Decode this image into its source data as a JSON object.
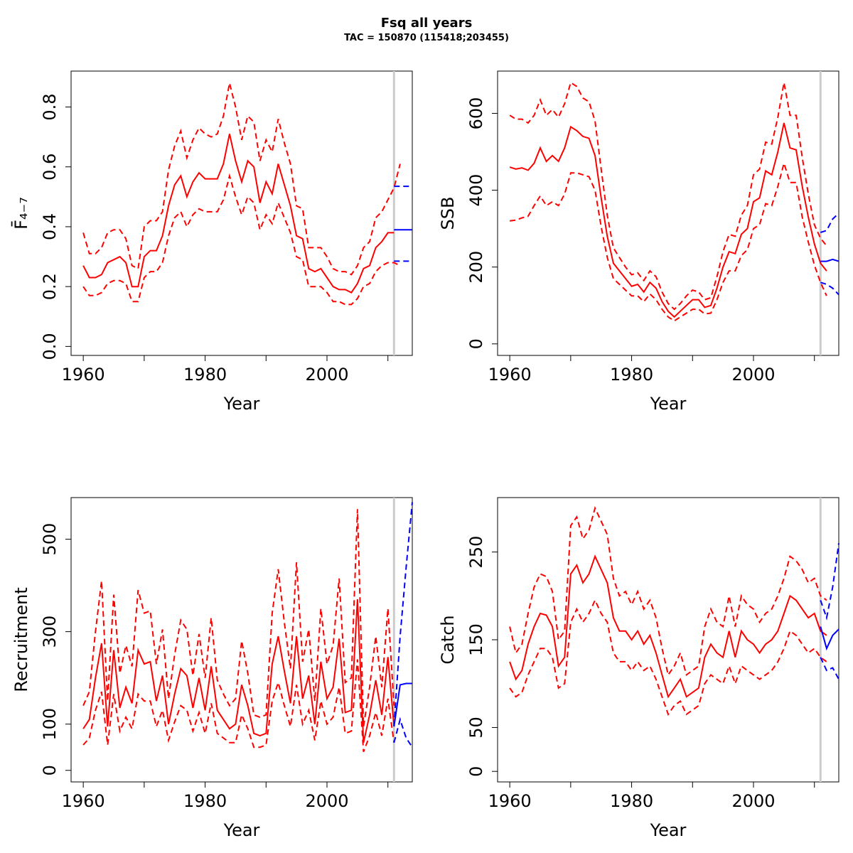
{
  "figure": {
    "title": "Fsq all years",
    "subtitle": "TAC = 150870 (115418;203455)"
  },
  "colors": {
    "history": "#ff0000",
    "forecast": "#0000ff",
    "divider": "#cccccc"
  },
  "chart_data": [
    {
      "type": "line",
      "panel": "top-left",
      "xlabel": "Year",
      "ylabel": "F̄₄₋₇",
      "xlim": [
        1958,
        2014
      ],
      "ylim": [
        -0.03,
        0.92
      ],
      "x_ticks": [
        1960,
        1980,
        2000
      ],
      "x_tick_labels": [
        "1960",
        "1980",
        "2000"
      ],
      "y_ticks": [
        0.0,
        0.2,
        0.4,
        0.6,
        0.8
      ],
      "y_tick_labels": [
        "0.0",
        "0.2",
        "0.4",
        "0.6",
        "0.8"
      ],
      "divider_x": 2011,
      "series": [
        {
          "role": "estimate",
          "color": "red",
          "dash": false,
          "x_start": 1960,
          "values": [
            0.27,
            0.23,
            0.23,
            0.24,
            0.28,
            0.29,
            0.3,
            0.28,
            0.2,
            0.2,
            0.3,
            0.32,
            0.32,
            0.37,
            0.47,
            0.54,
            0.57,
            0.5,
            0.55,
            0.58,
            0.56,
            0.56,
            0.56,
            0.61,
            0.71,
            0.62,
            0.55,
            0.62,
            0.6,
            0.48,
            0.55,
            0.51,
            0.61,
            0.54,
            0.47,
            0.37,
            0.36,
            0.26,
            0.25,
            0.26,
            0.23,
            0.2,
            0.19,
            0.19,
            0.18,
            0.21,
            0.26,
            0.27,
            0.33,
            0.35,
            0.38,
            0.38
          ]
        },
        {
          "role": "upper",
          "color": "red",
          "dash": true,
          "x_start": 1960,
          "values": [
            0.38,
            0.31,
            0.31,
            0.33,
            0.38,
            0.39,
            0.39,
            0.36,
            0.27,
            0.26,
            0.4,
            0.42,
            0.42,
            0.45,
            0.59,
            0.67,
            0.72,
            0.63,
            0.69,
            0.73,
            0.71,
            0.7,
            0.71,
            0.77,
            0.88,
            0.8,
            0.69,
            0.77,
            0.75,
            0.62,
            0.69,
            0.65,
            0.76,
            0.68,
            0.61,
            0.47,
            0.46,
            0.33,
            0.33,
            0.33,
            0.3,
            0.26,
            0.25,
            0.25,
            0.24,
            0.27,
            0.33,
            0.35,
            0.43,
            0.45,
            0.49,
            0.53,
            0.61
          ]
        },
        {
          "role": "lower",
          "color": "red",
          "dash": true,
          "x_start": 1960,
          "values": [
            0.2,
            0.17,
            0.17,
            0.18,
            0.21,
            0.22,
            0.22,
            0.21,
            0.15,
            0.15,
            0.23,
            0.25,
            0.25,
            0.28,
            0.37,
            0.43,
            0.45,
            0.4,
            0.44,
            0.46,
            0.45,
            0.45,
            0.45,
            0.49,
            0.57,
            0.5,
            0.44,
            0.5,
            0.48,
            0.39,
            0.44,
            0.41,
            0.48,
            0.43,
            0.38,
            0.3,
            0.29,
            0.2,
            0.2,
            0.2,
            0.18,
            0.15,
            0.15,
            0.14,
            0.14,
            0.16,
            0.2,
            0.21,
            0.25,
            0.27,
            0.28,
            0.28,
            0.27
          ]
        },
        {
          "role": "forecast",
          "color": "blue",
          "dash": false,
          "x": [
            2011,
            2012,
            2013,
            2014
          ],
          "values": [
            0.39,
            0.39,
            0.39,
            0.39
          ]
        },
        {
          "role": "forecast-upper",
          "color": "blue",
          "dash": true,
          "x": [
            2011,
            2012,
            2013,
            2014
          ],
          "values": [
            0.535,
            0.535,
            0.535,
            0.535
          ]
        },
        {
          "role": "forecast-lower",
          "color": "blue",
          "dash": true,
          "x": [
            2011,
            2012,
            2013,
            2014
          ],
          "values": [
            0.285,
            0.285,
            0.285,
            0.285
          ]
        }
      ]
    },
    {
      "type": "line",
      "panel": "top-right",
      "xlabel": "Year",
      "ylabel": "SSB",
      "xlim": [
        1958,
        2014
      ],
      "ylim": [
        -30,
        710
      ],
      "x_ticks": [
        1960,
        1980,
        2000
      ],
      "x_tick_labels": [
        "1960",
        "1980",
        "2000"
      ],
      "y_ticks": [
        0,
        200,
        400,
        600
      ],
      "y_tick_labels": [
        "0",
        "200",
        "400",
        "600"
      ],
      "divider_x": 2011,
      "series": [
        {
          "role": "estimate",
          "color": "red",
          "dash": false,
          "x_start": 1960,
          "values": [
            460,
            455,
            458,
            452,
            470,
            510,
            475,
            490,
            475,
            510,
            565,
            555,
            540,
            535,
            490,
            380,
            280,
            210,
            190,
            170,
            150,
            155,
            135,
            160,
            145,
            110,
            85,
            70,
            85,
            100,
            115,
            115,
            95,
            100,
            145,
            200,
            240,
            235,
            285,
            300,
            370,
            380,
            450,
            440,
            500,
            575,
            510,
            505,
            410,
            330,
            260,
            210,
            190
          ]
        },
        {
          "role": "upper",
          "color": "red",
          "dash": true,
          "x_start": 1960,
          "values": [
            595,
            585,
            585,
            575,
            595,
            635,
            595,
            610,
            590,
            625,
            680,
            670,
            640,
            630,
            580,
            455,
            335,
            250,
            225,
            200,
            180,
            185,
            165,
            190,
            175,
            135,
            105,
            90,
            105,
            125,
            140,
            135,
            115,
            120,
            175,
            240,
            285,
            280,
            335,
            360,
            440,
            455,
            525,
            520,
            590,
            680,
            595,
            595,
            485,
            390,
            310,
            275,
            255
          ]
        },
        {
          "role": "lower",
          "color": "red",
          "dash": true,
          "x_start": 1960,
          "values": [
            320,
            322,
            328,
            332,
            360,
            385,
            360,
            370,
            360,
            390,
            445,
            445,
            440,
            435,
            400,
            305,
            225,
            170,
            155,
            140,
            125,
            125,
            110,
            130,
            115,
            90,
            70,
            60,
            70,
            80,
            90,
            90,
            78,
            80,
            115,
            160,
            190,
            190,
            230,
            245,
            300,
            310,
            365,
            360,
            410,
            470,
            420,
            420,
            330,
            265,
            205,
            160,
            125
          ]
        },
        {
          "role": "forecast",
          "color": "blue",
          "dash": false,
          "x": [
            2011,
            2012,
            2013,
            2014
          ],
          "values": [
            215,
            215,
            220,
            215
          ]
        },
        {
          "role": "forecast-upper",
          "color": "blue",
          "dash": true,
          "x": [
            2011,
            2012,
            2013,
            2014
          ],
          "values": [
            290,
            295,
            325,
            340
          ]
        },
        {
          "role": "forecast-lower",
          "color": "blue",
          "dash": true,
          "x": [
            2011,
            2012,
            2013,
            2014
          ],
          "values": [
            160,
            155,
            145,
            128
          ]
        }
      ]
    },
    {
      "type": "line",
      "panel": "bottom-left",
      "xlabel": "Year",
      "ylabel": "Recruitment",
      "xlim": [
        1958,
        2014
      ],
      "ylim": [
        -25,
        590
      ],
      "x_ticks": [
        1960,
        1980,
        2000
      ],
      "x_tick_labels": [
        "1960",
        "1980",
        "2000"
      ],
      "y_ticks": [
        0,
        100,
        300,
        500
      ],
      "y_tick_labels": [
        "0",
        "100",
        "300",
        "500"
      ],
      "divider_x": 2011,
      "series": [
        {
          "role": "estimate",
          "color": "red",
          "dash": false,
          "x_start": 1960,
          "values": [
            90,
            110,
            200,
            275,
            95,
            260,
            135,
            180,
            145,
            260,
            230,
            235,
            150,
            205,
            100,
            165,
            220,
            205,
            135,
            200,
            130,
            225,
            130,
            110,
            90,
            100,
            185,
            140,
            80,
            75,
            80,
            230,
            290,
            215,
            145,
            290,
            155,
            205,
            100,
            235,
            155,
            180,
            285,
            125,
            130,
            370,
            60,
            120,
            195,
            120,
            245,
            95
          ]
        },
        {
          "role": "upper",
          "color": "red",
          "dash": true,
          "x_start": 1960,
          "values": [
            140,
            170,
            300,
            410,
            150,
            380,
            210,
            270,
            225,
            390,
            340,
            345,
            230,
            305,
            155,
            250,
            325,
            305,
            205,
            295,
            200,
            330,
            195,
            165,
            140,
            155,
            280,
            210,
            120,
            115,
            120,
            340,
            435,
            320,
            220,
            450,
            235,
            305,
            150,
            350,
            230,
            270,
            415,
            190,
            200,
            565,
            95,
            180,
            290,
            180,
            350,
            140
          ]
        },
        {
          "role": "lower",
          "color": "red",
          "dash": true,
          "x_start": 1960,
          "values": [
            55,
            70,
            130,
            170,
            55,
            165,
            85,
            115,
            90,
            165,
            150,
            150,
            95,
            130,
            65,
            105,
            140,
            130,
            85,
            125,
            80,
            145,
            80,
            70,
            60,
            60,
            120,
            90,
            50,
            50,
            55,
            150,
            190,
            140,
            95,
            185,
            100,
            130,
            65,
            150,
            100,
            115,
            180,
            80,
            85,
            240,
            40,
            75,
            125,
            75,
            155,
            60
          ]
        },
        {
          "role": "forecast",
          "color": "blue",
          "dash": false,
          "x": [
            2011,
            2012,
            2013,
            2014
          ],
          "values": [
            95,
            185,
            188,
            188
          ]
        },
        {
          "role": "forecast-upper",
          "color": "blue",
          "dash": true,
          "x": [
            2011,
            2012,
            2013,
            2014
          ],
          "values": [
            95,
            290,
            440,
            580
          ]
        },
        {
          "role": "forecast-lower",
          "color": "blue",
          "dash": true,
          "x": [
            2011,
            2012,
            2013,
            2014
          ],
          "values": [
            60,
            110,
            70,
            50
          ]
        }
      ]
    },
    {
      "type": "line",
      "panel": "bottom-right",
      "xlabel": "Year",
      "ylabel": "Catch",
      "xlim": [
        1958,
        2014
      ],
      "ylim": [
        -12,
        312
      ],
      "x_ticks": [
        1960,
        1980,
        2000
      ],
      "x_tick_labels": [
        "1960",
        "1980",
        "2000"
      ],
      "y_ticks": [
        0,
        50,
        150,
        250
      ],
      "y_tick_labels": [
        "0",
        "50",
        "150",
        "250"
      ],
      "divider_x": 2011,
      "series": [
        {
          "role": "estimate",
          "color": "red",
          "dash": false,
          "x_start": 1960,
          "values": [
            125,
            105,
            115,
            145,
            165,
            180,
            178,
            165,
            120,
            130,
            225,
            235,
            215,
            225,
            245,
            230,
            215,
            175,
            160,
            160,
            150,
            160,
            145,
            155,
            135,
            110,
            85,
            95,
            105,
            85,
            90,
            95,
            130,
            145,
            135,
            130,
            160,
            130,
            160,
            150,
            145,
            135,
            145,
            150,
            160,
            180,
            200,
            195,
            185,
            175,
            180,
            160,
            155
          ]
        },
        {
          "role": "upper",
          "color": "red",
          "dash": true,
          "x_start": 1960,
          "values": [
            165,
            135,
            145,
            180,
            210,
            225,
            222,
            205,
            150,
            160,
            280,
            290,
            265,
            275,
            300,
            285,
            270,
            220,
            200,
            205,
            190,
            205,
            185,
            195,
            175,
            140,
            110,
            120,
            135,
            110,
            115,
            120,
            165,
            185,
            170,
            165,
            200,
            165,
            200,
            190,
            185,
            170,
            180,
            185,
            200,
            220,
            245,
            240,
            230,
            215,
            220,
            200,
            195
          ]
        },
        {
          "role": "lower",
          "color": "red",
          "dash": true,
          "x_start": 1960,
          "values": [
            95,
            85,
            90,
            110,
            125,
            140,
            140,
            130,
            95,
            100,
            170,
            185,
            170,
            180,
            195,
            180,
            170,
            135,
            125,
            125,
            115,
            125,
            115,
            120,
            105,
            85,
            65,
            75,
            80,
            65,
            70,
            75,
            100,
            110,
            105,
            100,
            120,
            100,
            120,
            115,
            110,
            105,
            110,
            115,
            125,
            140,
            160,
            155,
            145,
            135,
            140,
            130,
            125
          ]
        },
        {
          "role": "forecast",
          "color": "blue",
          "dash": false,
          "x": [
            2011,
            2012,
            2013,
            2014
          ],
          "values": [
            165,
            140,
            155,
            162
          ]
        },
        {
          "role": "forecast-upper",
          "color": "blue",
          "dash": true,
          "x": [
            2011,
            2012,
            2013,
            2014
          ],
          "values": [
            195,
            175,
            210,
            260
          ]
        },
        {
          "role": "forecast-lower",
          "color": "blue",
          "dash": true,
          "x": [
            2011,
            2012,
            2013,
            2014
          ],
          "values": [
            130,
            115,
            118,
            105
          ]
        }
      ]
    }
  ]
}
